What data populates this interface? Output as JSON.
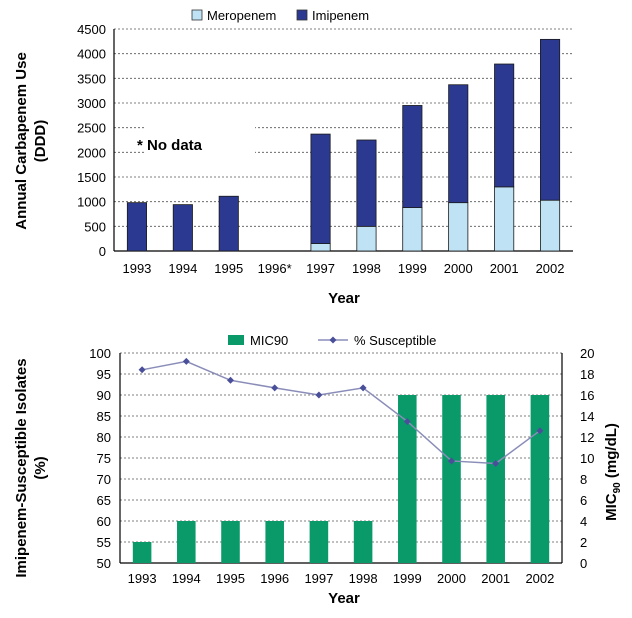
{
  "chart_data": [
    {
      "type": "bar",
      "stacked": true,
      "categories": [
        "1993",
        "1994",
        "1995",
        "1996*",
        "1997",
        "1998",
        "1999",
        "2000",
        "2001",
        "2002"
      ],
      "series": [
        {
          "name": "Meropenem",
          "color": "#bfe3f5",
          "values": [
            0,
            0,
            0,
            null,
            150,
            500,
            880,
            980,
            1300,
            1030
          ]
        },
        {
          "name": "Imipenem",
          "color": "#2b3990",
          "values": [
            980,
            940,
            1110,
            null,
            2220,
            1750,
            2070,
            2390,
            2490,
            3260
          ]
        }
      ],
      "xlabel": "Year",
      "ylabel": "Annual Carbapenem Use",
      "ylabel_line2": "(DDD)",
      "ylim": [
        0,
        4500
      ],
      "yticks": [
        "0",
        "500",
        "1000",
        "1500",
        "2000",
        "2500",
        "3000",
        "3500",
        "4000",
        "4500"
      ],
      "annotation": "* No data",
      "grid": true,
      "legend_position": "top"
    },
    {
      "type": "bar",
      "categories": [
        "1993",
        "1994",
        "1995",
        "1996",
        "1997",
        "1998",
        "1999",
        "2000",
        "2001",
        "2002"
      ],
      "series": [
        {
          "name": "MIC90",
          "axis": "right",
          "color": "#0a9a6a",
          "values": [
            2,
            4,
            4,
            4,
            4,
            4,
            16,
            16,
            16,
            16
          ]
        },
        {
          "name": "% Susceptible",
          "type": "line",
          "axis": "left",
          "color": "#8a8db8",
          "marker_color": "#4a4f9a",
          "values": [
            96,
            98,
            93.5,
            91.7,
            90,
            91.7,
            83.7,
            74.3,
            73.7,
            81.5
          ]
        }
      ],
      "xlabel": "Year",
      "ylabel": "Imipenem-Susceptible Isolates",
      "ylabel_line2": "(%)",
      "y2label": "MIC",
      "y2label_sub": "90",
      "y2label_suffix": " (mg/dL)",
      "ylim": [
        50,
        100
      ],
      "y2lim": [
        0,
        20
      ],
      "yticks": [
        "50",
        "55",
        "60",
        "65",
        "70",
        "75",
        "80",
        "85",
        "90",
        "95",
        "100"
      ],
      "y2ticks": [
        "0",
        "2",
        "4",
        "6",
        "8",
        "10",
        "12",
        "14",
        "16",
        "18",
        "20"
      ],
      "grid": true,
      "legend_position": "top"
    }
  ]
}
